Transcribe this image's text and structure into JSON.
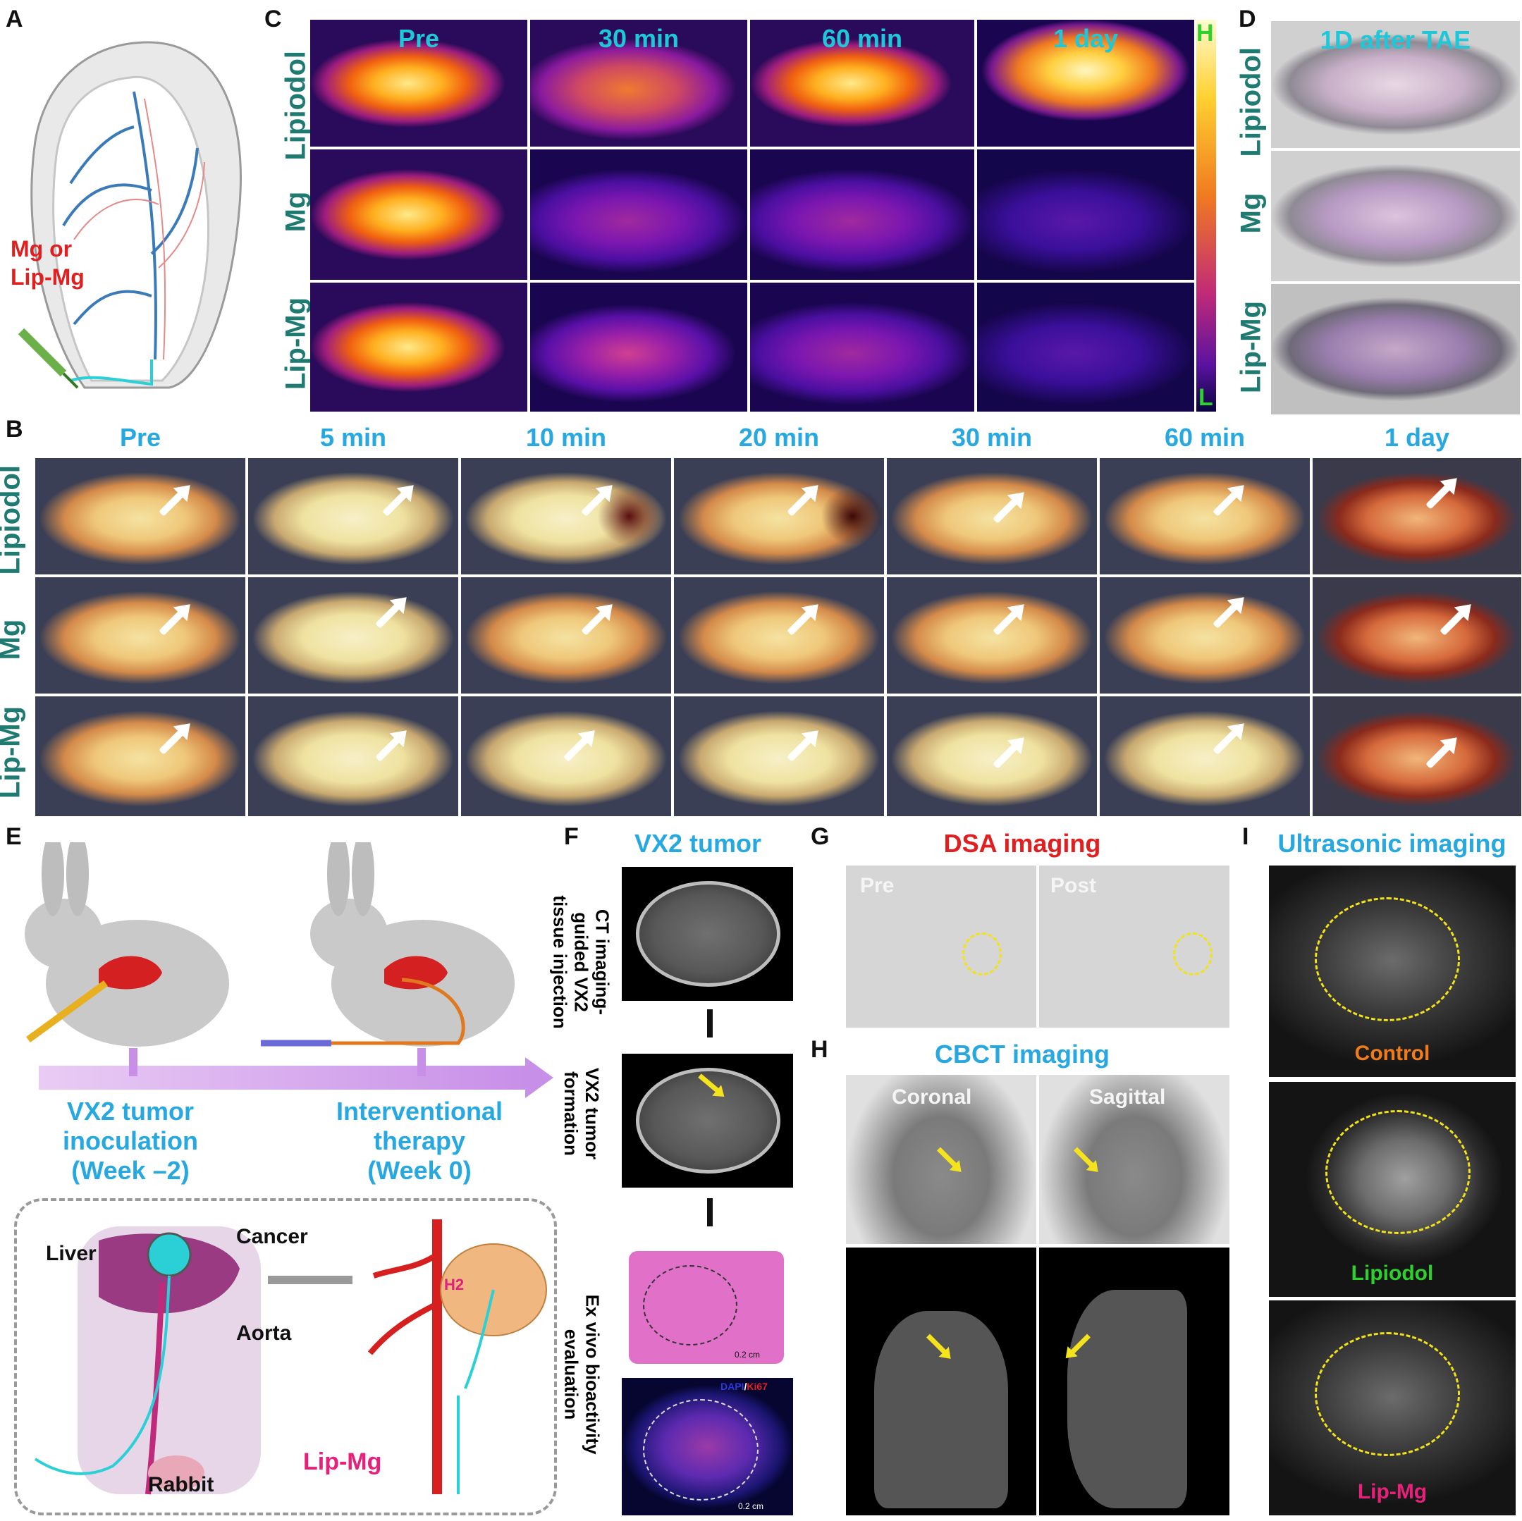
{
  "panels": {
    "A": {
      "letter": "A",
      "injection_label_line1": "Mg or",
      "injection_label_line2": "Lip-Mg"
    },
    "C": {
      "letter": "C",
      "columns": [
        "Pre",
        "30 min",
        "60 min",
        "1 day"
      ],
      "rows": [
        "Lipiodol",
        "Mg",
        "Lip-Mg"
      ],
      "scale_high": "H",
      "scale_low": "L"
    },
    "D": {
      "letter": "D",
      "header": "1D after TAE",
      "rows": [
        "Lipiodol",
        "Mg",
        "Lip-Mg"
      ]
    },
    "B": {
      "letter": "B",
      "columns": [
        "Pre",
        "5 min",
        "10 min",
        "20 min",
        "30 min",
        "60 min",
        "1 day"
      ],
      "rows": [
        "Lipiodol",
        "Mg",
        "Lip-Mg"
      ]
    },
    "E": {
      "letter": "E",
      "step1_line1": "VX2 tumor",
      "step1_line2": "inoculation",
      "step1_line3": "(Week –2)",
      "step2_line1": "Interventional",
      "step2_line2": "therapy",
      "step2_line3": "(Week 0)",
      "liver": "Liver",
      "cancer": "Cancer",
      "aorta": "Aorta",
      "rabbit": "Rabbit",
      "lipmg": "Lip-Mg",
      "h2": "H2"
    },
    "F": {
      "letter": "F",
      "title": "VX2 tumor",
      "step1_line1": "CT imaging-",
      "step1_line2": "guided VX2",
      "step1_line3": "tissue injection",
      "step2_line1": "VX2 tumor",
      "step2_line2": "formation",
      "step3_line1": "Ex vivo bioactivity",
      "step3_line2": "evaluation",
      "scale": "0.2 cm",
      "stain_dapi": "DAPI",
      "stain_sep": "/",
      "stain_ki67": "Ki67"
    },
    "G": {
      "letter": "G",
      "title": "DSA imaging",
      "pre": "Pre",
      "post": "Post"
    },
    "H": {
      "letter": "H",
      "title": "CBCT imaging",
      "coronal": "Coronal",
      "sagittal": "Sagittal"
    },
    "I": {
      "letter": "I",
      "title": "Ultrasonic imaging",
      "labels": [
        "Control",
        "Lipiodol",
        "Lip-Mg"
      ],
      "label_colors": [
        "#f07b1a",
        "#2ed02e",
        "#e8207a"
      ]
    }
  }
}
